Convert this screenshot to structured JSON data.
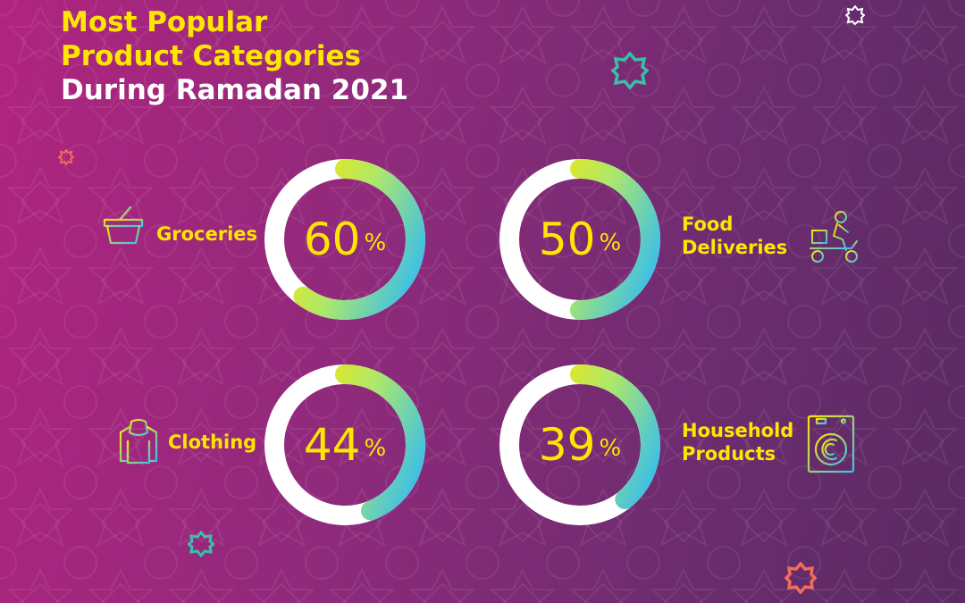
{
  "title": {
    "line1": "Most Popular",
    "line2": "Product Categories",
    "line3": "During Ramadan 2021"
  },
  "colors": {
    "accent_yellow": "#ffe600",
    "ring_track": "#ffffff",
    "gradient_start": "#ffe600",
    "gradient_mid": "#aee86a",
    "gradient_end": "#3cbfe8"
  },
  "chart_data": {
    "type": "pie",
    "title": "Most Popular Product Categories During Ramadan 2021",
    "unit": "%",
    "categories": [
      "Groceries",
      "Food Deliveries",
      "Clothing",
      "Household Products"
    ],
    "values": [
      60,
      50,
      44,
      39
    ]
  },
  "items": [
    {
      "label_lines": [
        "Groceries"
      ],
      "value": "60",
      "symbol": "%",
      "icon": "shopping-basket-icon"
    },
    {
      "label_lines": [
        "Food",
        "Deliveries"
      ],
      "value": "50",
      "symbol": "%",
      "icon": "delivery-scooter-icon"
    },
    {
      "label_lines": [
        "Clothing"
      ],
      "value": "44",
      "symbol": "%",
      "icon": "hoodie-icon"
    },
    {
      "label_lines": [
        "Household",
        "Products"
      ],
      "value": "39",
      "symbol": "%",
      "icon": "washing-machine-icon"
    }
  ]
}
